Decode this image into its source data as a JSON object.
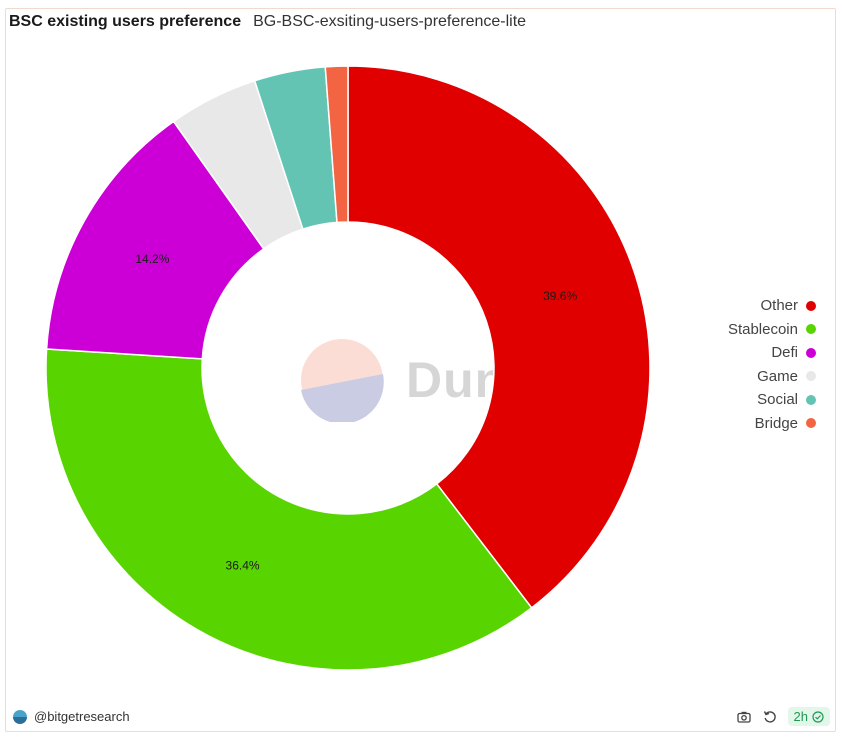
{
  "header": {
    "title": "BSC existing users preference",
    "subtitle": "BG-BSC-exsiting-users-preference-lite"
  },
  "chart_data": {
    "type": "pie",
    "donut": true,
    "categories": [
      "Other",
      "Stablecoin",
      "Defi",
      "Game",
      "Social",
      "Bridge"
    ],
    "values": [
      39.6,
      36.4,
      14.2,
      4.8,
      3.8,
      1.2
    ],
    "colors": [
      "#e00000",
      "#58d400",
      "#cc00d6",
      "#e8e8e8",
      "#64c4b4",
      "#f26442"
    ],
    "data_labels": [
      "39.6%",
      "36.4%",
      "14.2%",
      "",
      "",
      ""
    ],
    "legend_position": "right"
  },
  "watermark": {
    "text": "Dune"
  },
  "footer": {
    "author": "@bitgetresearch",
    "refresh_badge": "2h"
  },
  "icons": {
    "screenshot": "camera-icon",
    "refresh": "refresh-icon",
    "status": "check-circle-icon",
    "author": "dune-logo-icon"
  }
}
